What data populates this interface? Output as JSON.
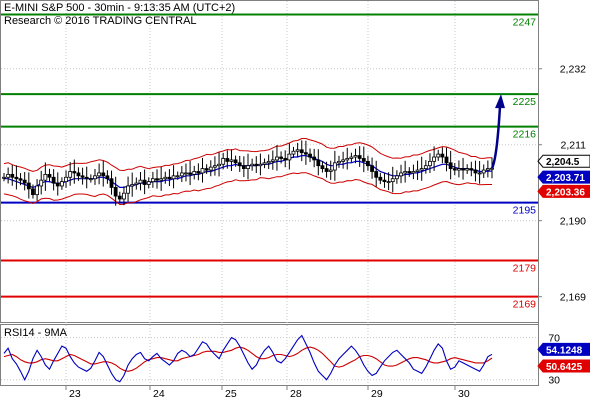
{
  "header": {
    "line1": "E-MINI S&P 500 - 30min - 9:13:35 AM (UTC+2)",
    "line2": "Research © 2016 TRADING CENTRAL"
  },
  "colors": {
    "resistance": "#008000",
    "support": "#0000c0",
    "stop": "#e00000",
    "bollinger": "#cc0000",
    "ma": "#0000c0",
    "candle": "#000000",
    "rsi": "#0000c0",
    "rsi_ma": "#cc0000",
    "arrow": "#00008b",
    "grid": "#c8c8c8"
  },
  "chart_data": [
    {
      "type": "candlestick",
      "title": "E-MINI S&P 500 - 30min",
      "ylim": [
        2162,
        2251
      ],
      "y_ticks": [
        "2,232",
        "2,211",
        "2,190",
        "2,169"
      ],
      "y_tick_values": [
        2232,
        2211,
        2190,
        2169
      ],
      "x_ticks": [
        "23",
        "24",
        "25",
        "28",
        "29",
        "30"
      ],
      "levels": [
        {
          "value": 2247,
          "label": "2247",
          "kind": "resistance"
        },
        {
          "value": 2225,
          "label": "2225",
          "kind": "resistance"
        },
        {
          "value": 2216,
          "label": "2216",
          "kind": "resistance"
        },
        {
          "value": 2195,
          "label": "2195",
          "kind": "support"
        },
        {
          "value": 2179,
          "label": "2179",
          "kind": "stop"
        },
        {
          "value": 2169,
          "label": "2169",
          "kind": "stop"
        }
      ],
      "price_badges": [
        {
          "value": 2204.5,
          "label": "2,204.5",
          "bg": "#ffffff",
          "fg": "#000000",
          "border": "#000000"
        },
        {
          "value": 2203.71,
          "label": "2,203.71",
          "bg": "#0000c0",
          "fg": "#ffffff",
          "border": "#0000c0"
        },
        {
          "value": 2203.36,
          "label": "2,203.36",
          "bg": "#e00000",
          "fg": "#ffffff",
          "border": "#e00000"
        }
      ],
      "close_series": [
        2202,
        2202.8,
        2202,
        2201.6,
        2201.2,
        2200.4,
        2198.8,
        2197.2,
        2199.6,
        2201.2,
        2202.8,
        2202,
        2200.4,
        2199.6,
        2200.8,
        2202,
        2203.6,
        2203.2,
        2202.4,
        2202,
        2201.6,
        2201.6,
        2202.4,
        2203.2,
        2202.4,
        2201.6,
        2199.2,
        2196.8,
        2196,
        2197.6,
        2199.6,
        2200,
        2200.4,
        2201.2,
        2200,
        2200.8,
        2201.6,
        2201.2,
        2201.6,
        2202,
        2201.6,
        2202.4,
        2202.4,
        2203.2,
        2203.2,
        2202.8,
        2203.6,
        2203.2,
        2204.4,
        2204,
        2204.8,
        2205.2,
        2205.6,
        2207.2,
        2206.4,
        2206.8,
        2206,
        2205.2,
        2204.4,
        2205.2,
        2205.6,
        2205.2,
        2205.6,
        2206,
        2206.4,
        2206.8,
        2207.6,
        2207.2,
        2206.8,
        2208.4,
        2209.2,
        2209.6,
        2208.8,
        2208.4,
        2207.6,
        2206.8,
        2205.2,
        2204.4,
        2203.6,
        2204,
        2206,
        2206.4,
        2206.8,
        2207.2,
        2207.6,
        2208,
        2207.2,
        2206.4,
        2205.2,
        2203.6,
        2202,
        2201.2,
        2200.8,
        2200.8,
        2201.6,
        2202.4,
        2203.2,
        2203.6,
        2203.2,
        2203.6,
        2204,
        2204.4,
        2205.2,
        2206.4,
        2207.6,
        2208.4,
        2207.6,
        2206,
        2204.4,
        2204,
        2204.4,
        2204,
        2204.4,
        2204,
        2203.2,
        2203.2,
        2204,
        2204.4,
        2204.5
      ],
      "ma_series": [
        2201.6,
        2201.6,
        2201.2,
        2200.8,
        2200.4,
        2200,
        2199.6,
        2199.2,
        2199.6,
        2200.4,
        2200.8,
        2200.8,
        2200.4,
        2200.4,
        2200.4,
        2200.8,
        2201.2,
        2201.6,
        2201.6,
        2201.6,
        2201.6,
        2201.6,
        2201.6,
        2202,
        2202,
        2201.6,
        2200.8,
        2200,
        2199.2,
        2199.2,
        2199.6,
        2199.6,
        2200,
        2200.4,
        2200.4,
        2200.4,
        2200.8,
        2200.8,
        2200.8,
        2201.2,
        2201.2,
        2201.6,
        2201.6,
        2202,
        2202.4,
        2202.4,
        2202.8,
        2202.8,
        2203.2,
        2203.6,
        2203.6,
        2204,
        2204.4,
        2204.8,
        2205.2,
        2205.2,
        2205.6,
        2205.2,
        2205.2,
        2205.2,
        2205.2,
        2205.2,
        2205.6,
        2205.6,
        2205.6,
        2206,
        2206.4,
        2206.4,
        2206.8,
        2207.2,
        2207.6,
        2207.6,
        2208,
        2208,
        2207.6,
        2207.2,
        2206.8,
        2206.4,
        2205.6,
        2205.2,
        2205.2,
        2205.6,
        2205.6,
        2206,
        2206,
        2206.4,
        2206.4,
        2206,
        2205.6,
        2205.2,
        2204.4,
        2203.6,
        2203.2,
        2202.8,
        2202.4,
        2202.4,
        2202.4,
        2202.8,
        2202.8,
        2203.2,
        2203.2,
        2203.6,
        2204,
        2204.4,
        2204.8,
        2205.2,
        2205.6,
        2205.6,
        2205.2,
        2204.8,
        2204.4,
        2204.4,
        2204.4,
        2204,
        2204,
        2203.6,
        2203.6,
        2203.71,
        2203.71
      ]
    },
    {
      "type": "line",
      "title": "RSI14 - 9MA",
      "ylim": [
        25,
        82
      ],
      "y_ticks": [
        "70",
        "30"
      ],
      "y_tick_values": [
        70,
        30
      ],
      "badges": [
        {
          "value": 54.1248,
          "label": "54.1248",
          "bg": "#0000c0",
          "fg": "#ffffff"
        },
        {
          "value": 50.6425,
          "label": "50.6425",
          "bg": "#e00000",
          "fg": "#ffffff"
        }
      ],
      "series": [
        {
          "name": "RSI14",
          "values": [
            55,
            60,
            50,
            45,
            38,
            30,
            38,
            50,
            58,
            52,
            44,
            40,
            48,
            55,
            62,
            60,
            52,
            46,
            42,
            40,
            38,
            41,
            48,
            56,
            52,
            44,
            36,
            30,
            28,
            34,
            44,
            50,
            54,
            56,
            50,
            48,
            52,
            55,
            50,
            47,
            44,
            48,
            55,
            58,
            56,
            52,
            54,
            60,
            66,
            64,
            58,
            54,
            50,
            58,
            64,
            70,
            68,
            62,
            54,
            46,
            40,
            44,
            52,
            58,
            62,
            56,
            48,
            46,
            50,
            56,
            62,
            68,
            72,
            64,
            56,
            46,
            38,
            34,
            30,
            36,
            44,
            50,
            54,
            58,
            62,
            58,
            52,
            44,
            38,
            34,
            36,
            42,
            48,
            52,
            56,
            58,
            54,
            50,
            46,
            40,
            38,
            36,
            42,
            50,
            58,
            64,
            60,
            48,
            40,
            42,
            48,
            46,
            44,
            42,
            40,
            38,
            44,
            52,
            54.1248
          ]
        },
        {
          "name": "9MA",
          "values": [
            52,
            53,
            54,
            52,
            49,
            47,
            46,
            46,
            47,
            49,
            50,
            49,
            48,
            48,
            50,
            52,
            54,
            53,
            51,
            49,
            47,
            45,
            45,
            46,
            47,
            47,
            46,
            44,
            41,
            39,
            38,
            39,
            41,
            44,
            47,
            49,
            50,
            51,
            51,
            50,
            49,
            48,
            48,
            50,
            51,
            52,
            53,
            54,
            56,
            57,
            57,
            57,
            56,
            56,
            57,
            58,
            60,
            61,
            60,
            58,
            55,
            52,
            50,
            50,
            51,
            53,
            54,
            54,
            53,
            52,
            53,
            55,
            58,
            60,
            61,
            60,
            58,
            55,
            51,
            47,
            43,
            42,
            43,
            45,
            47,
            49,
            52,
            53,
            53,
            52,
            50,
            47,
            44,
            43,
            43,
            44,
            46,
            48,
            50,
            51,
            51,
            50,
            49,
            47,
            46,
            46,
            47,
            48,
            50,
            51,
            50,
            49,
            48,
            47,
            46,
            46,
            46,
            48,
            50.6425
          ]
        }
      ]
    }
  ],
  "x_axis": {
    "labels": [
      "23",
      "24",
      "25",
      "28",
      "29",
      "30"
    ]
  }
}
